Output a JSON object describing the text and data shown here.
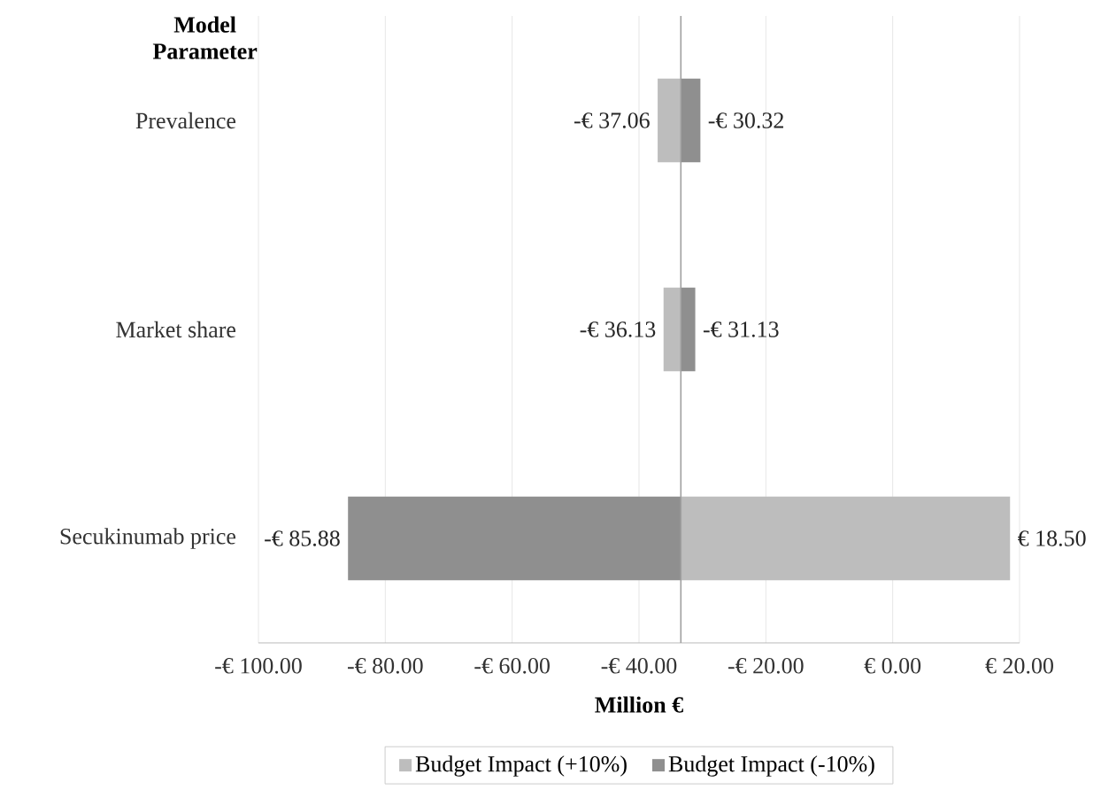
{
  "chart_data": {
    "type": "bar",
    "orientation": "horizontal",
    "ylabel": "Model Parameter",
    "xlabel": "Million €",
    "categories": [
      "Prevalence",
      "Market share",
      "Secukinumab price"
    ],
    "series": [
      {
        "name": "Budget Impact (+10%)",
        "color": "#bdbdbd",
        "base": [
          -33.4,
          -33.4,
          -33.4
        ],
        "values": [
          -3.66,
          -2.73,
          51.9
        ],
        "value_labels": [
          "-€ 37.06",
          "-€ 36.13",
          "€ 18.50"
        ]
      },
      {
        "name": "Budget Impact (-10%)",
        "color": "#8f8f8f",
        "base": [
          -33.4,
          -33.4,
          -33.4
        ],
        "values": [
          3.08,
          2.27,
          -52.48
        ],
        "value_labels": [
          "-€ 30.32",
          "-€ 31.13",
          "-€ 85.88"
        ]
      }
    ],
    "xlim": [
      -100,
      20
    ],
    "xticks": [
      {
        "value": -100,
        "label": "-€ 100.00"
      },
      {
        "value": -80,
        "label": "-€ 80.00"
      },
      {
        "value": -60,
        "label": "-€ 60.00"
      },
      {
        "value": -40,
        "label": "-€ 40.00"
      },
      {
        "value": -20,
        "label": "-€ 20.00"
      },
      {
        "value": 0,
        "label": "€ 0.00"
      },
      {
        "value": 20,
        "label": "€ 20.00"
      }
    ],
    "ref_lines": [
      {
        "axis": "x",
        "value": -33.4,
        "color": "#a0a0a0"
      }
    ],
    "grid": "x",
    "legend": "bottom"
  }
}
